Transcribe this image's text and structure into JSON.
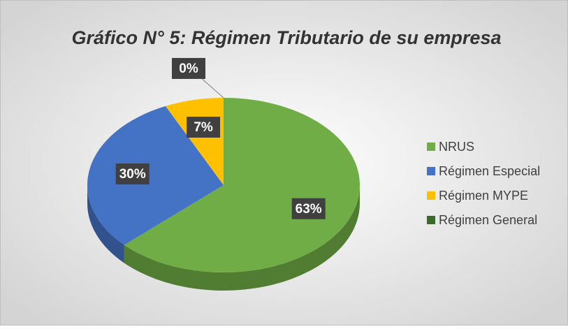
{
  "chart_data": {
    "type": "pie",
    "title": "Gráfico N° 5: Régimen Tributario de su empresa",
    "categories": [
      "NRUS",
      "Régimen Especial",
      "Régimen MYPE",
      "Régimen General"
    ],
    "values": [
      63,
      30,
      7,
      0
    ],
    "value_labels": [
      "63%",
      "30%",
      "7%",
      "0%"
    ],
    "colors": [
      "#70ad47",
      "#4472c4",
      "#ffc000",
      "#3b6b2b"
    ],
    "legend": "right"
  }
}
